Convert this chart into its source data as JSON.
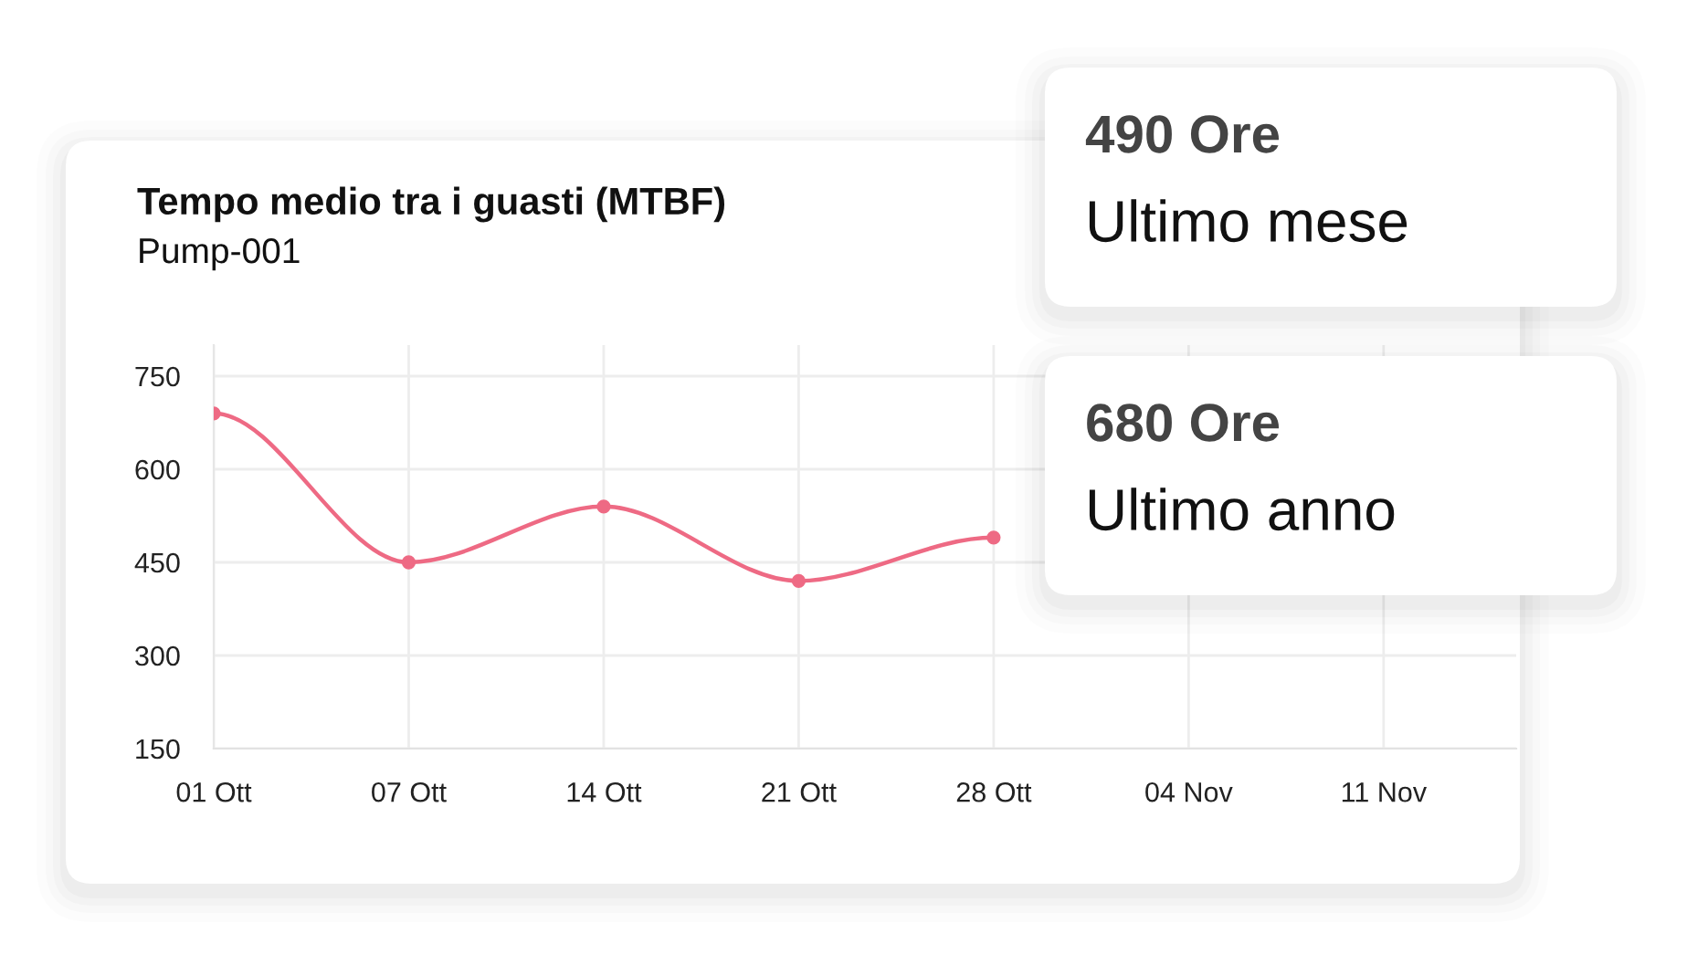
{
  "chart_data": {
    "type": "line",
    "title": "Tempo medio tra i guasti (MTBF)",
    "subtitle": "Pump-001",
    "categories": [
      "01 Ott",
      "07 Ott",
      "14 Ott",
      "21 Ott",
      "28 Ott",
      "04 Nov",
      "11 Nov"
    ],
    "series": [
      {
        "color": "#ee6a84",
        "values": [
          690,
          450,
          540,
          420,
          490,
          null,
          null
        ]
      }
    ],
    "ylim": [
      150,
      800
    ],
    "yticks": [
      150,
      300,
      450,
      600,
      750
    ],
    "grid": true,
    "marker": "circle",
    "line_style": "solid",
    "annotations": [
      "490 Ore",
      "Ultimo mese",
      "680 Ore",
      "Ultimo anno"
    ]
  }
}
